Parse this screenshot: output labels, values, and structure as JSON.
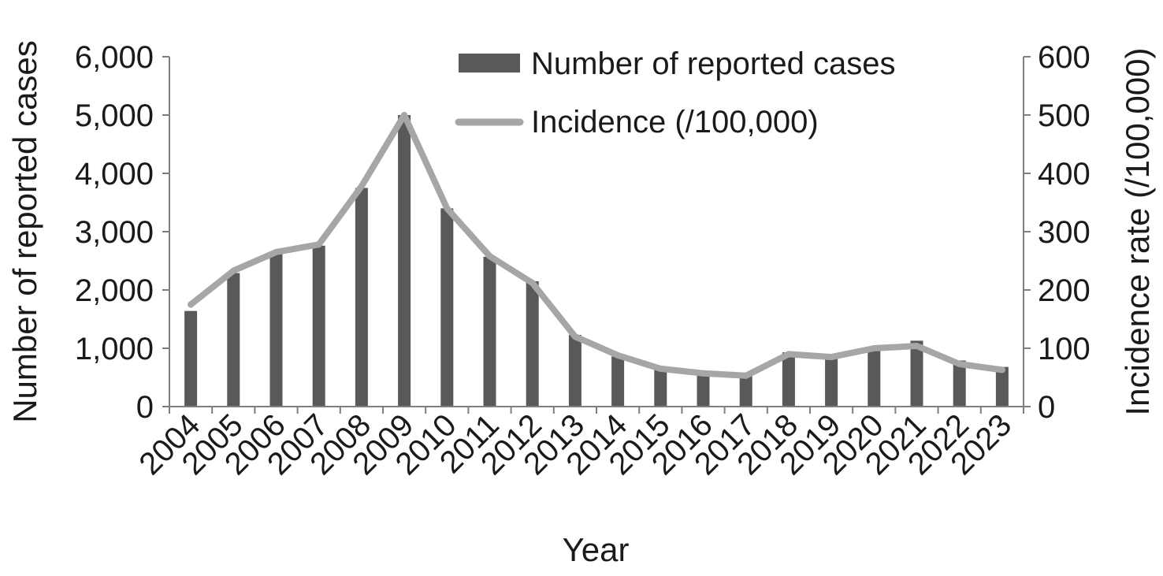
{
  "chart_data": {
    "type": "bar",
    "categories": [
      "2004",
      "2005",
      "2006",
      "2007",
      "2008",
      "2009",
      "2010",
      "2011",
      "2012",
      "2013",
      "2014",
      "2015",
      "2016",
      "2017",
      "2018",
      "2019",
      "2020",
      "2021",
      "2022",
      "2023"
    ],
    "series": [
      {
        "name": "Number of reported cases",
        "type": "bar",
        "axis": "left",
        "color": "#595959",
        "values": [
          1640,
          2290,
          2620,
          2760,
          3750,
          5000,
          3400,
          2570,
          2150,
          1230,
          860,
          650,
          580,
          540,
          930,
          880,
          1020,
          1130,
          790,
          680
        ]
      },
      {
        "name": "Incidence (/100,000)",
        "type": "line",
        "axis": "right",
        "color": "#a6a6a6",
        "values": [
          175,
          233,
          265,
          278,
          378,
          500,
          340,
          258,
          212,
          120,
          88,
          65,
          57,
          53,
          90,
          85,
          100,
          104,
          73,
          63
        ]
      }
    ],
    "xlabel": "Year",
    "ylabel": "Number of reported cases",
    "y2label": "Incidence rate (/100,000)",
    "ylim": [
      0,
      6000
    ],
    "y2lim": [
      0,
      600
    ],
    "yticks": [
      "0",
      "1,000",
      "2,000",
      "3,000",
      "4,000",
      "5,000",
      "6,000"
    ],
    "y2ticks": [
      "0",
      "100",
      "200",
      "300",
      "400",
      "500",
      "600"
    ],
    "grid": false,
    "legend_position": "top-center"
  }
}
